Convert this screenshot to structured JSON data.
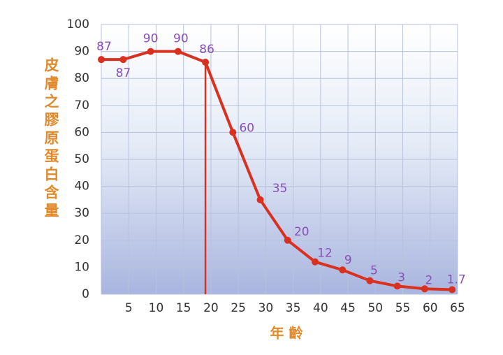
{
  "chart_data": {
    "type": "line",
    "xlabel": "年 齡",
    "ylabel": "皮膚之膠原蛋白含量",
    "x": [
      0,
      4,
      9,
      14,
      19,
      24,
      29,
      34,
      39,
      44,
      49,
      54,
      59,
      64
    ],
    "values": [
      87,
      87,
      90,
      90,
      86,
      60,
      35,
      20,
      12,
      9,
      5,
      3,
      2,
      1.7
    ],
    "color": "#d9301f",
    "xlim": [
      0,
      65
    ],
    "ylim": [
      0,
      100
    ],
    "xticks": [
      5,
      10,
      15,
      20,
      25,
      30,
      35,
      40,
      45,
      50,
      55,
      60,
      65
    ],
    "yticks": [
      0,
      10,
      20,
      30,
      40,
      50,
      60,
      70,
      80,
      90,
      100
    ],
    "grid": true
  }
}
